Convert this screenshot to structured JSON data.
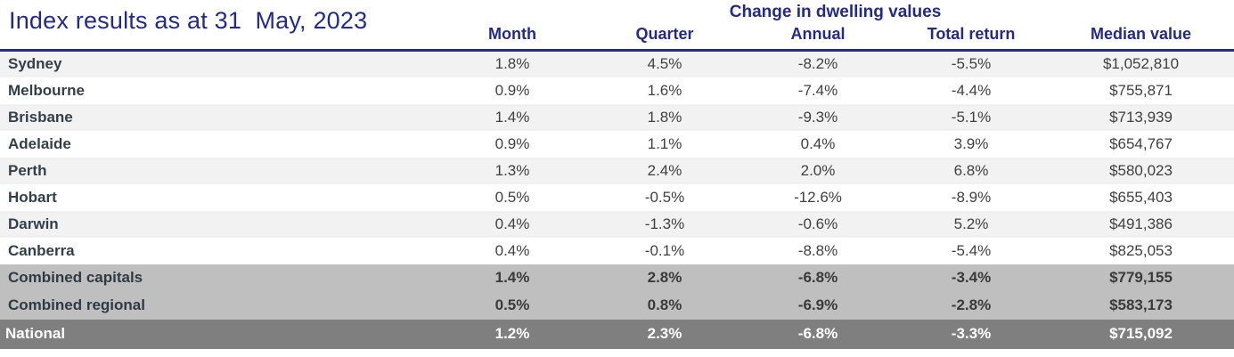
{
  "colors": {
    "navy": "#252a87",
    "stripe_bg": "#f2f2f2",
    "subtotal_bg": "#bfbfbf",
    "total_bg": "#7f7f7f",
    "label_text": "#333f48",
    "value_text": "#404040",
    "total_text": "#ffffff"
  },
  "chart_data": {
    "type": "table",
    "title": "Index results as at 31  May, 2023",
    "group_header": "Change in dwelling values",
    "columns": [
      "Month",
      "Quarter",
      "Annual",
      "Total return",
      "Median value"
    ],
    "rows": [
      {
        "label": "Sydney",
        "cells": [
          "1.8%",
          "4.5%",
          "-8.2%",
          "-5.5%",
          "$1,052,810"
        ]
      },
      {
        "label": "Melbourne",
        "cells": [
          "0.9%",
          "1.6%",
          "-7.4%",
          "-4.4%",
          "$755,871"
        ]
      },
      {
        "label": "Brisbane",
        "cells": [
          "1.4%",
          "1.8%",
          "-9.3%",
          "-5.1%",
          "$713,939"
        ]
      },
      {
        "label": "Adelaide",
        "cells": [
          "0.9%",
          "1.1%",
          "0.4%",
          "3.9%",
          "$654,767"
        ]
      },
      {
        "label": "Perth",
        "cells": [
          "1.3%",
          "2.4%",
          "2.0%",
          "6.8%",
          "$580,023"
        ]
      },
      {
        "label": "Hobart",
        "cells": [
          "0.5%",
          "-0.5%",
          "-12.6%",
          "-8.9%",
          "$655,403"
        ]
      },
      {
        "label": "Darwin",
        "cells": [
          "0.4%",
          "-1.3%",
          "-0.6%",
          "5.2%",
          "$491,386"
        ]
      },
      {
        "label": "Canberra",
        "cells": [
          "0.4%",
          "-0.1%",
          "-8.8%",
          "-5.4%",
          "$825,053"
        ]
      },
      {
        "label": "Combined capitals",
        "cells": [
          "1.4%",
          "2.8%",
          "-6.8%",
          "-3.4%",
          "$779,155"
        ]
      },
      {
        "label": "Combined regional",
        "cells": [
          "0.5%",
          "0.8%",
          "-6.9%",
          "-2.8%",
          "$583,173"
        ]
      },
      {
        "label": "National",
        "cells": [
          "1.2%",
          "2.3%",
          "-6.8%",
          "-3.3%",
          "$715,092"
        ]
      }
    ]
  }
}
